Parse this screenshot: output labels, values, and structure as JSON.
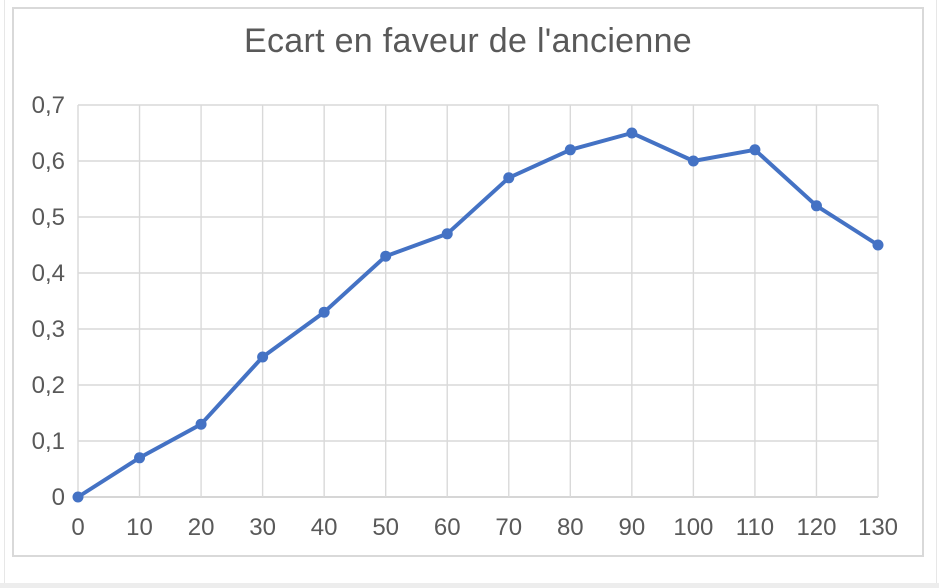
{
  "chart_data": {
    "type": "line",
    "title": "Ecart en faveur de l'ancienne",
    "xlabel": "",
    "ylabel": "",
    "x": [
      0,
      10,
      20,
      30,
      40,
      50,
      60,
      70,
      80,
      90,
      100,
      110,
      120,
      130
    ],
    "values": [
      0,
      0.07,
      0.13,
      0.25,
      0.33,
      0.43,
      0.47,
      0.57,
      0.62,
      0.65,
      0.6,
      0.62,
      0.52,
      0.45
    ],
    "xlim": [
      0,
      130
    ],
    "ylim": [
      0,
      0.7
    ],
    "x_tick_values": [
      0,
      10,
      20,
      30,
      40,
      50,
      60,
      70,
      80,
      90,
      100,
      110,
      120,
      130
    ],
    "x_tick_labels": [
      "0",
      "10",
      "20",
      "30",
      "40",
      "50",
      "60",
      "70",
      "80",
      "90",
      "100",
      "110",
      "120",
      "130"
    ],
    "y_tick_values": [
      0,
      0.1,
      0.2,
      0.3,
      0.4,
      0.5,
      0.6,
      0.7
    ],
    "y_tick_labels": [
      "0",
      "0,1",
      "0,2",
      "0,3",
      "0,4",
      "0,5",
      "0,6",
      "0,7"
    ],
    "grid": true,
    "legend": "none",
    "colors": {
      "series": "#4472C4",
      "gridline": "#d9d9d9",
      "axis_line": "#c9c9c9",
      "frame_border": "#d9d9d9",
      "text": "#595959",
      "background": "#ffffff"
    }
  }
}
